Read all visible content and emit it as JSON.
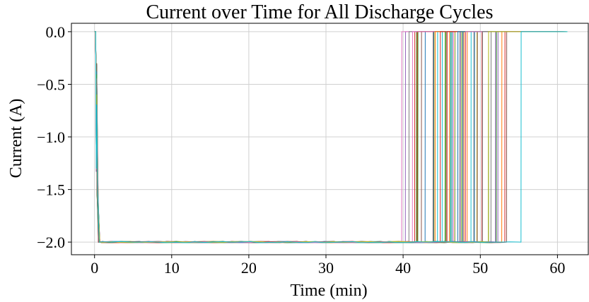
{
  "chart_data": {
    "type": "line",
    "title": "Current over Time for All Discharge Cycles",
    "xlabel": "Time (min)",
    "ylabel": "Current (A)",
    "xlim": [
      -3,
      64
    ],
    "ylim": [
      -2.12,
      0.08
    ],
    "x_ticks": [
      0,
      10,
      20,
      30,
      40,
      50,
      60
    ],
    "y_ticks": [
      0.0,
      -0.5,
      -1.0,
      -1.5,
      -2.0
    ],
    "x_tick_labels": [
      "0",
      "10",
      "20",
      "30",
      "40",
      "50",
      "60"
    ],
    "y_tick_labels": [
      "0.0",
      "−0.5",
      "−1.0",
      "−1.5",
      "−2.0"
    ],
    "grid": true,
    "legend": "none",
    "cycle_count": 60,
    "discharge_level": -2.0,
    "rest_level": 0.0,
    "discharge_start_min": 0.3,
    "cutoff_range_min": [
      38.7,
      55.6
    ],
    "rest_end_range_min": [
      56.0,
      61.3
    ],
    "colors": [
      "#1f77b4",
      "#ff7f0e",
      "#2ca02c",
      "#d62728",
      "#9467bd",
      "#8c564b",
      "#e377c2",
      "#7f7f7f",
      "#bcbd22",
      "#17becf"
    ]
  }
}
